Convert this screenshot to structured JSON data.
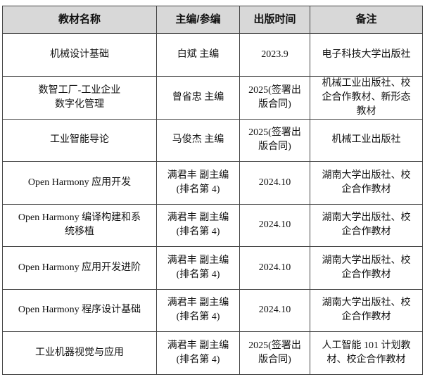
{
  "headers": [
    "教材名称",
    "主编/参编",
    "出版时间",
    "备注"
  ],
  "rows": [
    {
      "name": "机械设计基础",
      "editor": "白斌  主编",
      "date": "2023.9",
      "note": "电子科技大学出版社"
    },
    {
      "name": "数智工厂-工业企业\n数字化管理",
      "editor": "曾省忠 主编",
      "date": "2025(签署出\n版合同)",
      "note": "机械工业出版社、校\n企合作教材、新形态\n教材"
    },
    {
      "name": "工业智能导论",
      "editor": "马俊杰 主编",
      "date": "2025(签署出\n版合同)",
      "note": "机械工业出版社"
    },
    {
      "name": "Open Harmony  应用开发",
      "editor": "满君丰 副主编\n(排名第 4)",
      "date": "2024.10",
      "note": "湖南大学出版社、校\n企合作教材"
    },
    {
      "name": "Open Harmony  编译构建和系\n统移植",
      "editor": "满君丰 副主编\n(排名第 4)",
      "date": "2024.10",
      "note": "湖南大学出版社、校\n企合作教材"
    },
    {
      "name": "Open Harmony  应用开发进阶",
      "editor": "满君丰 副主编\n(排名第 4)",
      "date": "2024.10",
      "note": "湖南大学出版社、校\n企合作教材"
    },
    {
      "name": "Open Harmony  程序设计基础",
      "editor": "满君丰 副主编\n(排名第 4)",
      "date": "2024.10",
      "note": "湖南大学出版社、校\n企合作教材"
    },
    {
      "name": "工业机器视觉与应用",
      "editor": "满君丰 副主编\n(排名第 4)",
      "date": "2025(签署出\n版合同)",
      "note": "人工智能 101 计划教\n材、校企合作教材"
    }
  ]
}
